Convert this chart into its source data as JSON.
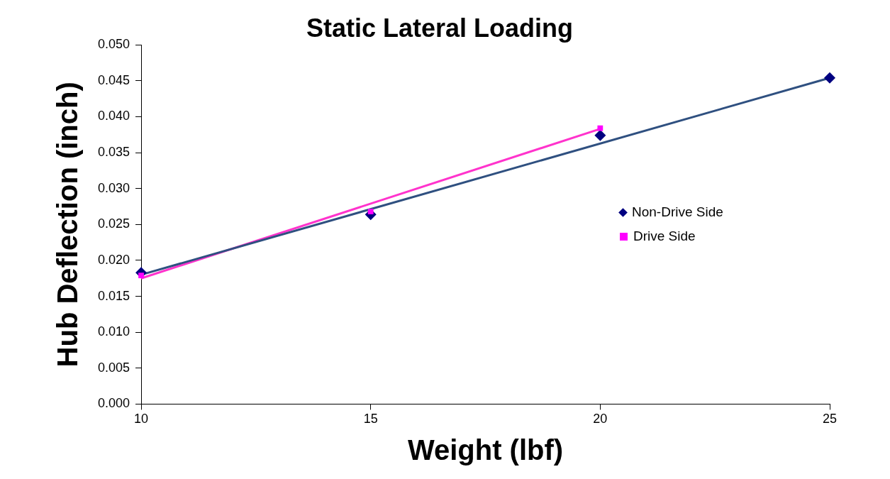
{
  "chart_data": {
    "type": "scatter",
    "title": "Static Lateral Loading",
    "xlabel": "Weight (lbf)",
    "ylabel": "Hub Deflection (inch)",
    "xlim": [
      10,
      25
    ],
    "xticks": [
      10,
      15,
      20,
      25
    ],
    "ylim": [
      0,
      0.05
    ],
    "yticks": [
      {
        "value": 0,
        "label": "0.000"
      },
      {
        "value": 0.005,
        "label": "0.005"
      },
      {
        "value": 0.01,
        "label": "0.010"
      },
      {
        "value": 0.015,
        "label": "0.015"
      },
      {
        "value": 0.02,
        "label": "0.020"
      },
      {
        "value": 0.025,
        "label": "0.025"
      },
      {
        "value": 0.03,
        "label": "0.030"
      },
      {
        "value": 0.035,
        "label": "0.035"
      },
      {
        "value": 0.04,
        "label": "0.040"
      },
      {
        "value": 0.045,
        "label": "0.045"
      },
      {
        "value": 0.05,
        "label": "0.050"
      }
    ],
    "grid": false,
    "legend": "right",
    "series": [
      {
        "name": "Non-Drive Side",
        "color": "#000080",
        "marker": "diamond",
        "x": [
          10,
          15,
          20,
          25
        ],
        "values": [
          0.0183,
          0.0264,
          0.0374,
          0.0454
        ]
      },
      {
        "name": "Drive Side",
        "color": "#ff00ff",
        "marker": "square",
        "x": [
          10,
          15,
          20
        ],
        "values": [
          0.0179,
          0.0268,
          0.0384
        ]
      },
      {
        "type": "line",
        "color": "#2f5080",
        "marker": "none",
        "x": [
          10,
          25
        ],
        "values": [
          0.018,
          0.0454
        ]
      },
      {
        "type": "line",
        "color": "#ff33cc",
        "marker": "none",
        "x": [
          10,
          20
        ],
        "values": [
          0.0175,
          0.0383
        ]
      }
    ]
  }
}
